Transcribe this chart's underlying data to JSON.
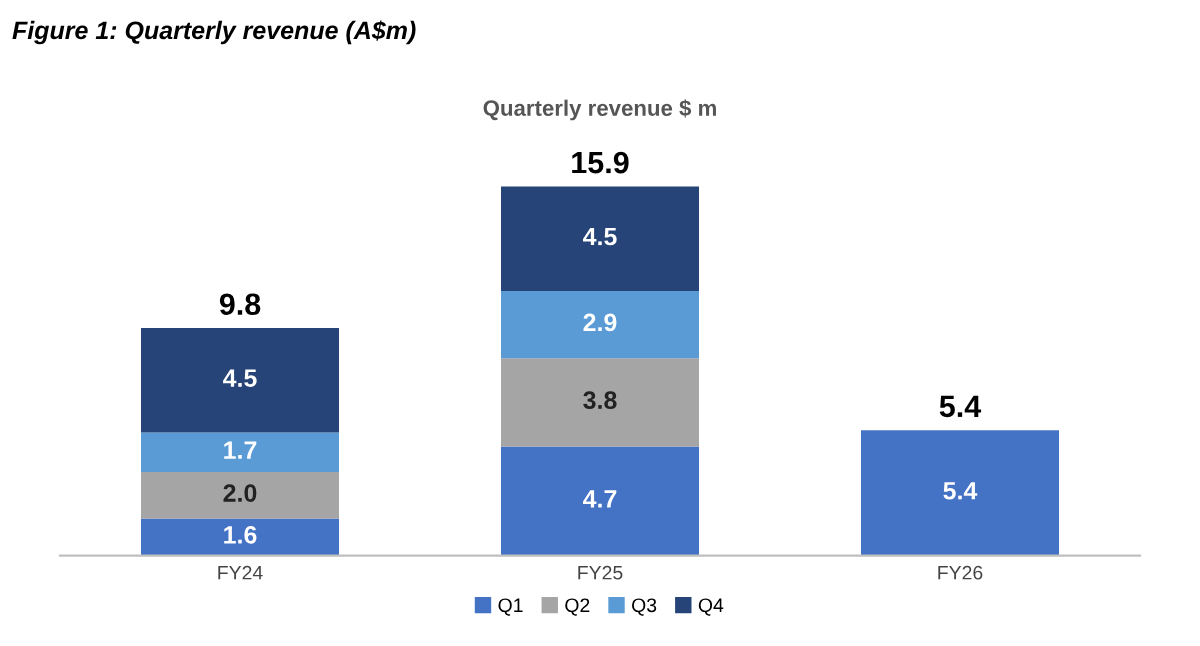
{
  "chart_data": {
    "type": "bar",
    "title": "Figure 1: Quarterly revenue (A$m)",
    "subtitle": "Quarterly revenue $ m",
    "categories": [
      "FY24",
      "FY25",
      "FY26"
    ],
    "stacked": true,
    "totals": [
      "9.8",
      "15.9",
      "5.4"
    ],
    "legend": "bottom",
    "grid": false,
    "series": [
      {
        "name": "Q1",
        "color": "#4472c4",
        "values": [
          1.6,
          4.7,
          5.4
        ],
        "value_labels": [
          "1.6",
          "4.7",
          "5.4"
        ]
      },
      {
        "name": "Q2",
        "color": "#a5a5a5",
        "values": [
          2.0,
          3.8,
          null
        ],
        "value_labels": [
          "2.0",
          "3.8",
          null
        ]
      },
      {
        "name": "Q3",
        "color": "#5b9bd5",
        "values": [
          1.7,
          2.9,
          null
        ],
        "value_labels": [
          "1.7",
          "2.9",
          null
        ]
      },
      {
        "name": "Q4",
        "color": "#264478",
        "values": [
          4.5,
          4.5,
          null
        ],
        "value_labels": [
          "4.5",
          "4.5",
          null
        ]
      }
    ]
  }
}
